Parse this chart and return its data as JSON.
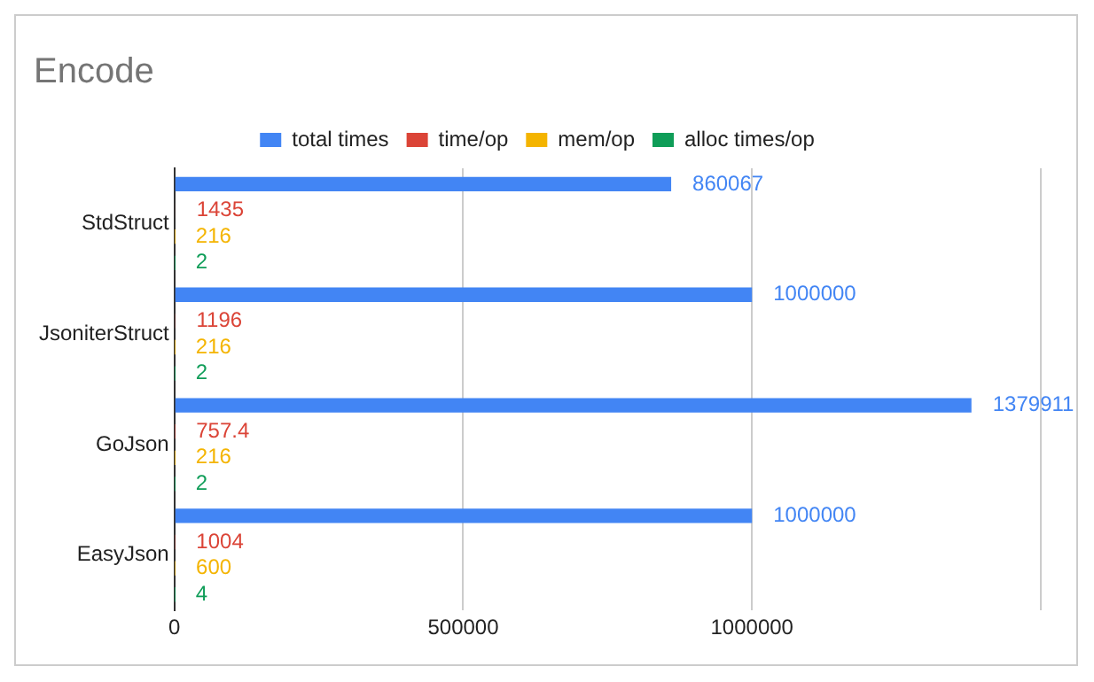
{
  "chart_data": {
    "type": "bar",
    "orientation": "horizontal",
    "title": "Encode",
    "categories": [
      "StdStruct",
      "JsoniterStruct",
      "GoJson",
      "EasyJson"
    ],
    "series": [
      {
        "name": "total times",
        "color": "#4285f4",
        "values": [
          860067,
          1000000,
          1379911,
          1000000
        ]
      },
      {
        "name": "time/op",
        "color": "#db4437",
        "values": [
          1435,
          1196,
          757.4,
          1004
        ]
      },
      {
        "name": "mem/op",
        "color": "#f4b400",
        "values": [
          216,
          216,
          216,
          600
        ]
      },
      {
        "name": "alloc times/op",
        "color": "#0f9d58",
        "values": [
          2,
          2,
          2,
          4
        ]
      }
    ],
    "xlim": [
      0,
      1500000
    ],
    "xticks": [
      0,
      500000,
      1000000,
      {
        "value": 1500000,
        "label": null
      }
    ],
    "grid": "x",
    "legend": "top",
    "data_labels": true
  }
}
